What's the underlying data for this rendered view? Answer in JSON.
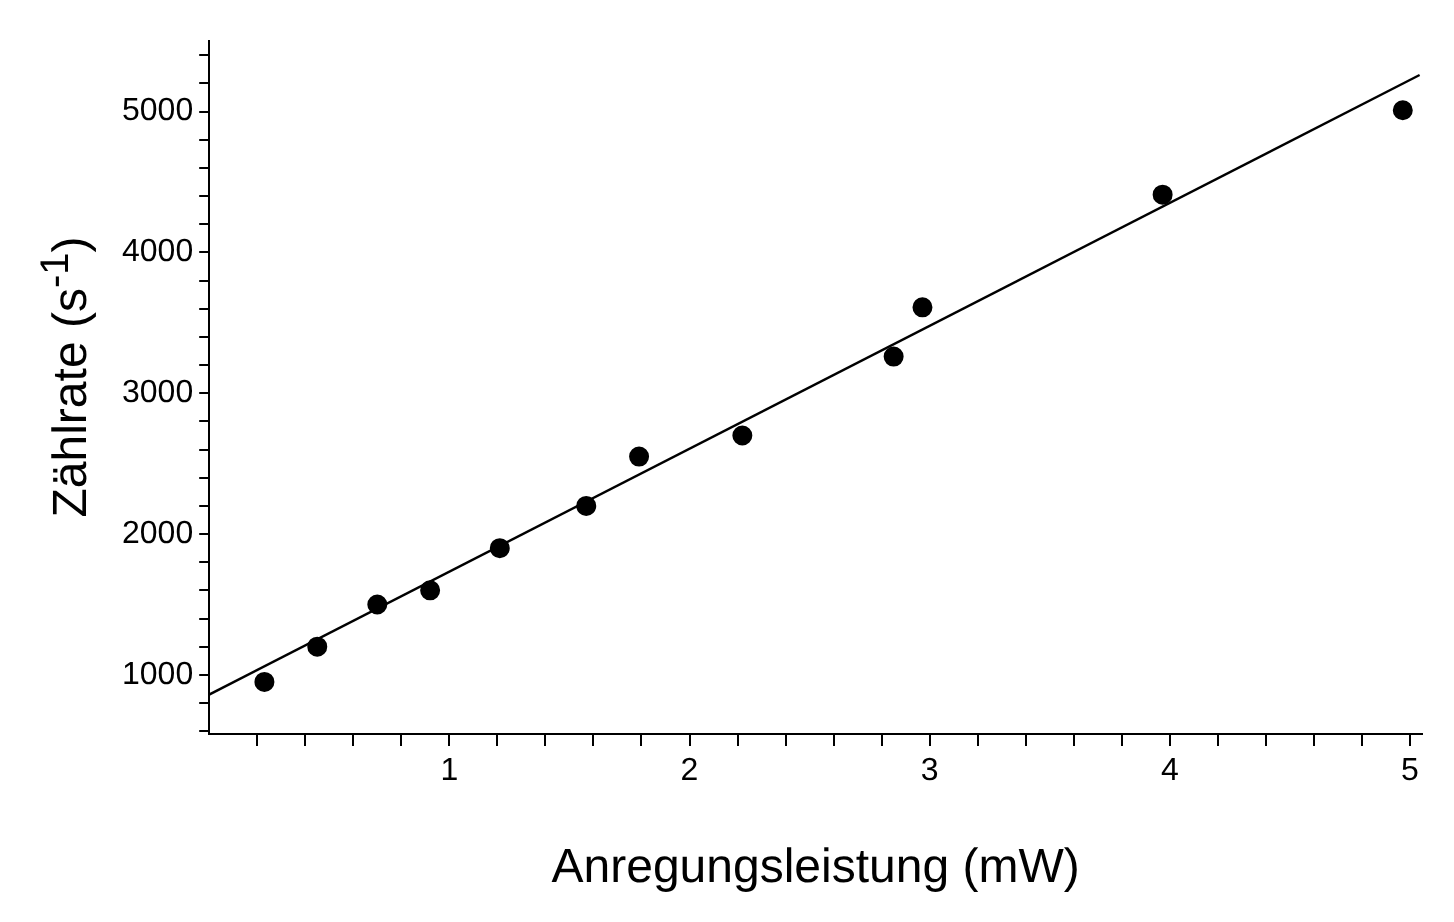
{
  "chart_data": {
    "type": "scatter",
    "xlabel": "Anregungsleistung (mW)",
    "ylabel": "Zählrate (s$^{-1}$)",
    "xlim": [
      0,
      5.05
    ],
    "ylim": [
      580,
      5500
    ],
    "xticks": [
      {
        "value": 0.2,
        "label": null
      },
      {
        "value": 0.4,
        "label": null
      },
      {
        "value": 0.6,
        "label": null
      },
      {
        "value": 0.8,
        "label": null
      },
      1,
      {
        "value": 1.2,
        "label": null
      },
      {
        "value": 1.4,
        "label": null
      },
      {
        "value": 1.6,
        "label": null
      },
      {
        "value": 1.8,
        "label": null
      },
      2,
      {
        "value": 2.2,
        "label": null
      },
      {
        "value": 2.4,
        "label": null
      },
      {
        "value": 2.6,
        "label": null
      },
      {
        "value": 2.8,
        "label": null
      },
      3,
      {
        "value": 3.2,
        "label": null
      },
      {
        "value": 3.4,
        "label": null
      },
      {
        "value": 3.6,
        "label": null
      },
      {
        "value": 3.8,
        "label": null
      },
      4,
      {
        "value": 4.2,
        "label": null
      },
      {
        "value": 4.4,
        "label": null
      },
      {
        "value": 4.6,
        "label": null
      },
      {
        "value": 4.8,
        "label": null
      },
      5
    ],
    "yticks": [
      {
        "value": 600,
        "label": null
      },
      {
        "value": 800,
        "label": null
      },
      1000,
      {
        "value": 1200,
        "label": null
      },
      {
        "value": 1400,
        "label": null
      },
      {
        "value": 1600,
        "label": null
      },
      {
        "value": 1800,
        "label": null
      },
      2000,
      {
        "value": 2200,
        "label": null
      },
      {
        "value": 2400,
        "label": null
      },
      {
        "value": 2600,
        "label": null
      },
      {
        "value": 2800,
        "label": null
      },
      3000,
      {
        "value": 3200,
        "label": null
      },
      {
        "value": 3400,
        "label": null
      },
      {
        "value": 3600,
        "label": null
      },
      {
        "value": 3800,
        "label": null
      },
      4000,
      {
        "value": 4200,
        "label": null
      },
      {
        "value": 4400,
        "label": null
      },
      {
        "value": 4600,
        "label": null
      },
      {
        "value": 4800,
        "label": null
      },
      5000,
      {
        "value": 5200,
        "label": null
      },
      {
        "value": 5400,
        "label": null
      }
    ],
    "grid": false,
    "legend": false,
    "marker": "circle",
    "series": [
      {
        "color": "#000000",
        "x": [
          0.23,
          0.45,
          0.7,
          0.92,
          1.21,
          1.57,
          1.79,
          2.22,
          2.85,
          2.97,
          3.97,
          4.97
        ],
        "values": [
          950,
          1200,
          1500,
          1600,
          1900,
          2200,
          2550,
          2700,
          3260,
          3610,
          4410,
          5010
        ]
      },
      {
        "type": "line",
        "color": "#000000",
        "marker": "none",
        "x": [
          0,
          5.04
        ],
        "values": [
          860,
          5260
        ]
      }
    ]
  }
}
